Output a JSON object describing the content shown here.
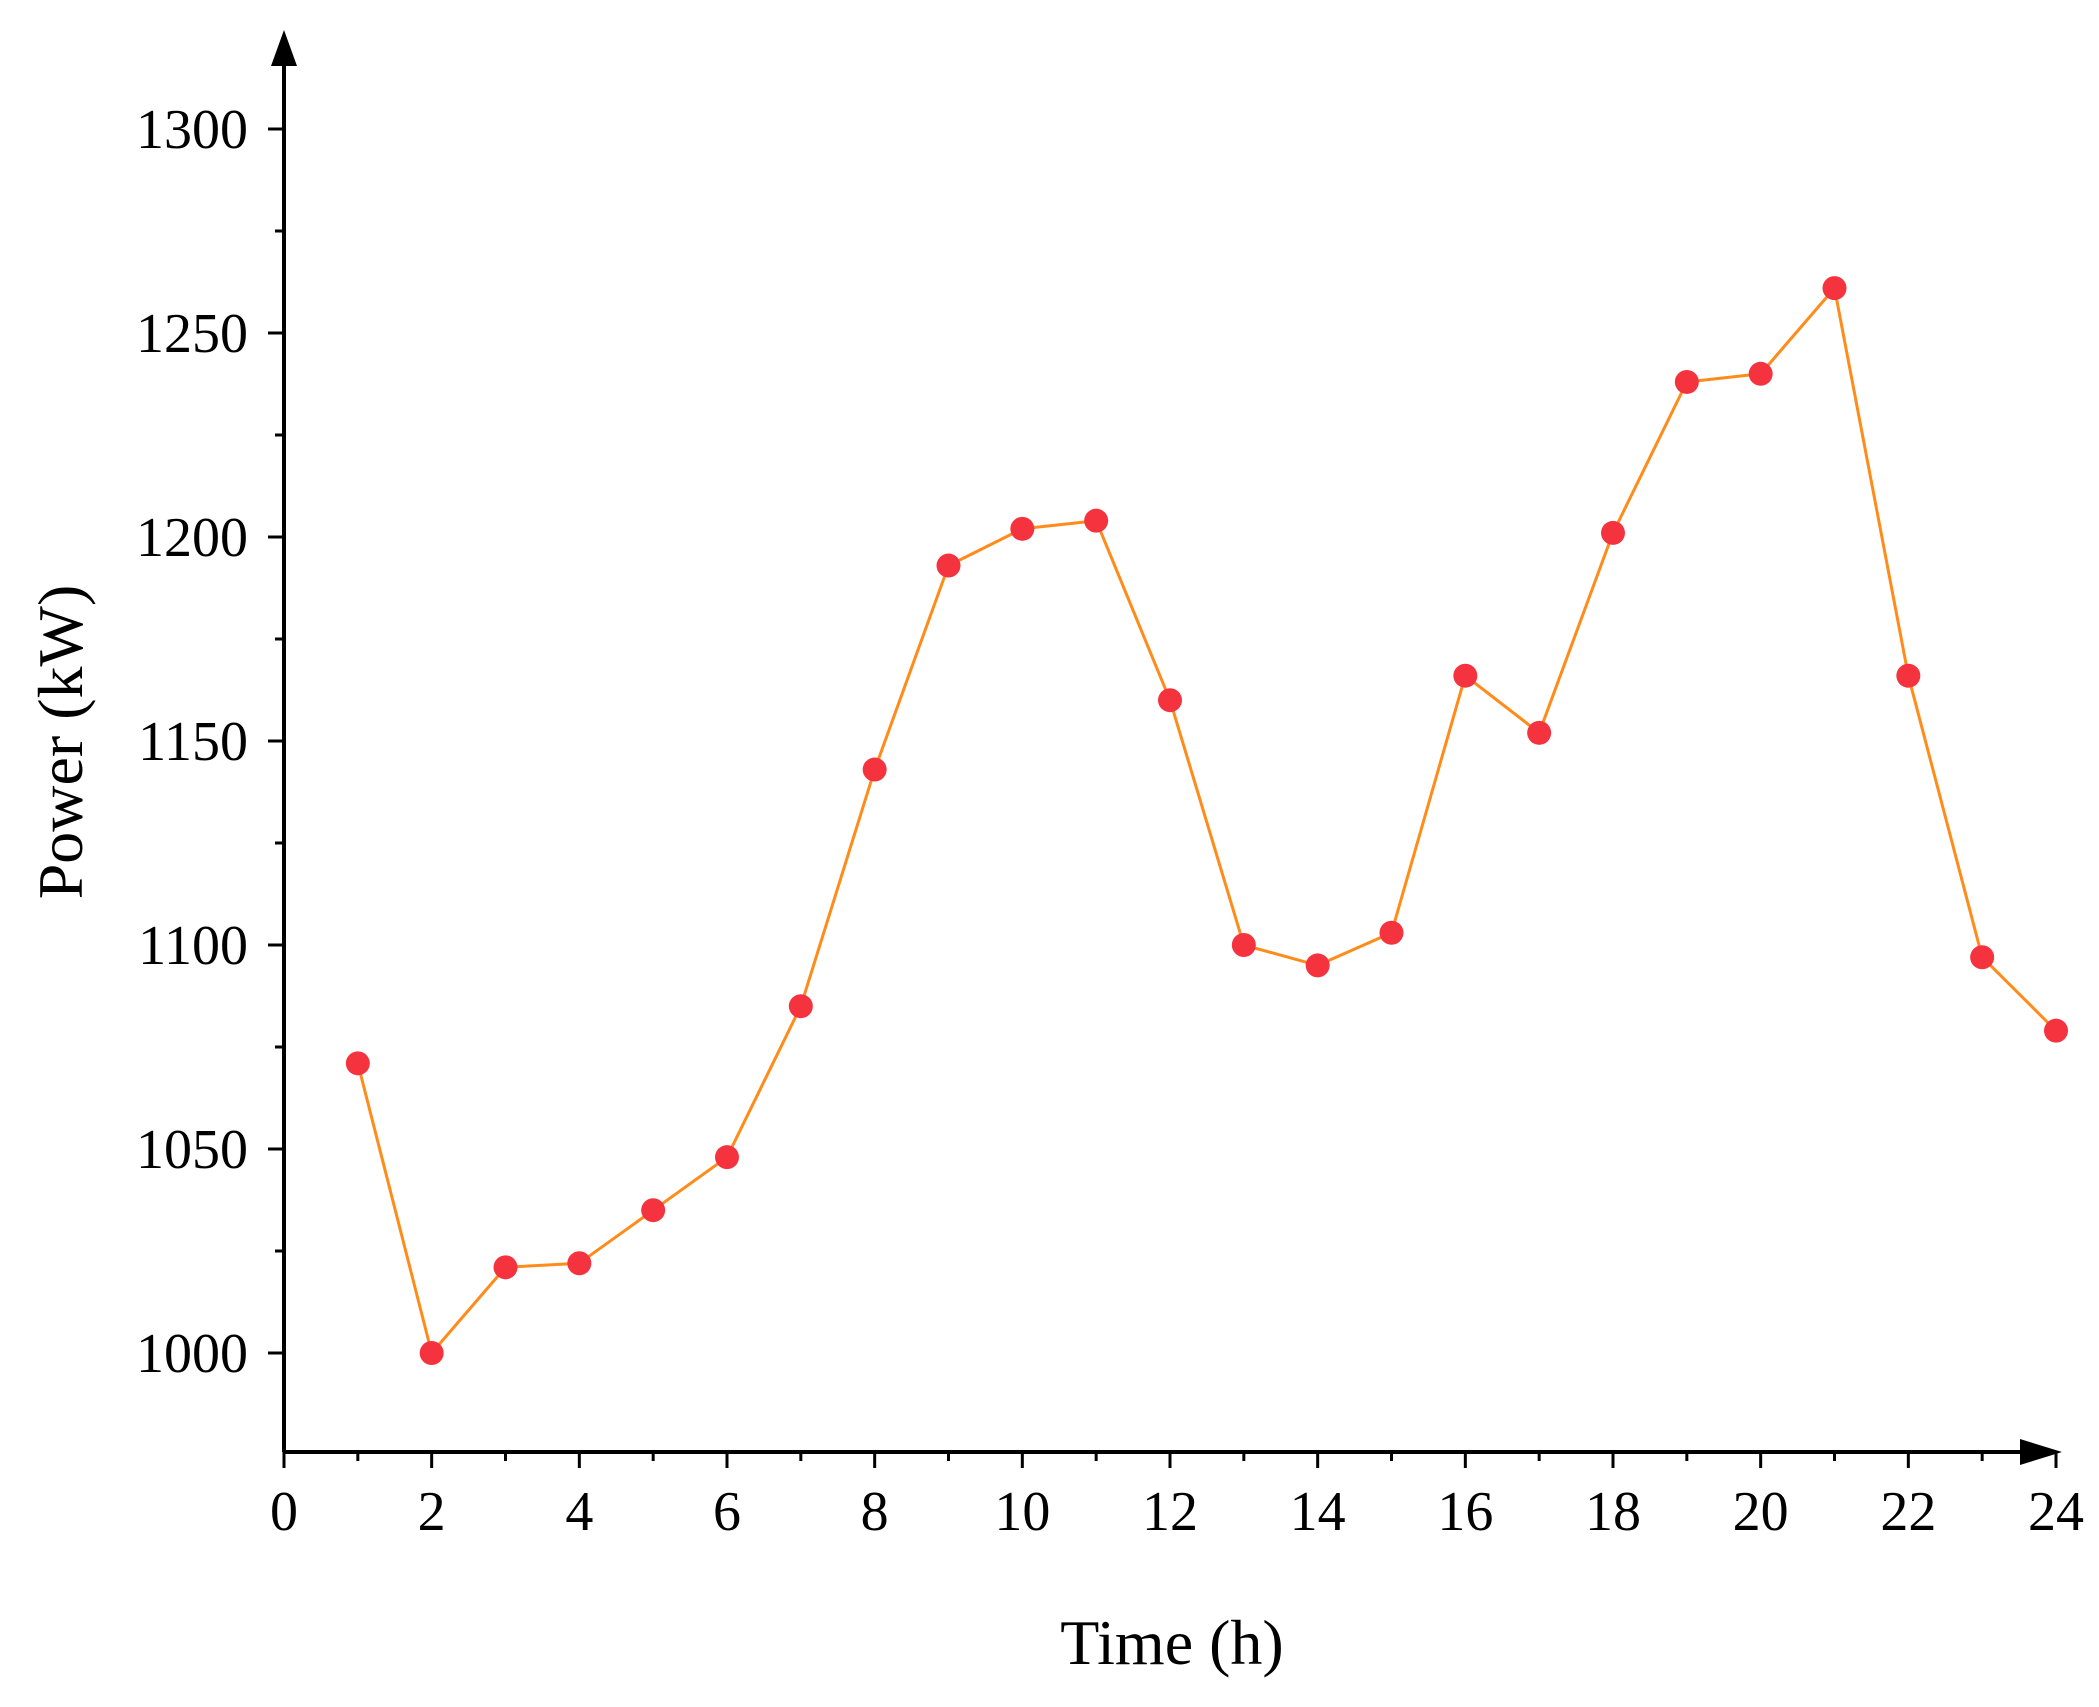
{
  "colors": {
    "line": "#FF8C1A",
    "marker": "#F5333F",
    "axis": "#000000",
    "background": "#FFFFFF"
  },
  "chart_data": {
    "type": "line",
    "title": "",
    "xlabel": "Time (h)",
    "ylabel": "Power (kW)",
    "xlim": [
      0,
      24
    ],
    "ylim": [
      975,
      1325
    ],
    "xticks": [
      0,
      2,
      4,
      6,
      8,
      10,
      12,
      14,
      16,
      18,
      20,
      22,
      24
    ],
    "xtick_labels": [
      "0",
      "2",
      "4",
      "6",
      "8",
      "10",
      "12",
      "14",
      "16",
      "18",
      "20",
      "22",
      "24"
    ],
    "xminor_ticks": [
      1,
      3,
      5,
      7,
      9,
      11,
      13,
      15,
      17,
      19,
      21,
      23
    ],
    "yticks": [
      1000,
      1050,
      1100,
      1150,
      1200,
      1250,
      1300
    ],
    "ytick_labels": [
      "1000",
      "1050",
      "1100",
      "1150",
      "1200",
      "1250",
      "1300"
    ],
    "yminor_ticks": [
      1025,
      1075,
      1125,
      1175,
      1225,
      1275
    ],
    "grid": false,
    "legend": "none",
    "series": [
      {
        "name": "Power",
        "x": [
          1,
          2,
          3,
          4,
          5,
          6,
          7,
          8,
          9,
          10,
          11,
          12,
          13,
          14,
          15,
          16,
          17,
          18,
          19,
          20,
          21,
          22,
          23,
          24
        ],
        "y": [
          1071,
          1000,
          1021,
          1022,
          1035,
          1048,
          1085,
          1143,
          1193,
          1202,
          1204,
          1160,
          1100,
          1095,
          1103,
          1166,
          1152,
          1201,
          1238,
          1240,
          1261,
          1166,
          1097,
          1079
        ]
      }
    ]
  }
}
